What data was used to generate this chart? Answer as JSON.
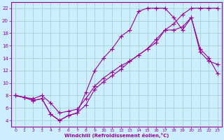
{
  "xlabel": "Windchill (Refroidissement éolien,°C)",
  "background_color": "#cceeff",
  "line_color": "#990099",
  "grid_color": "#99cccc",
  "xlim": [
    -0.5,
    23.5
  ],
  "ylim": [
    3,
    23
  ],
  "xticks": [
    0,
    1,
    2,
    3,
    4,
    5,
    6,
    7,
    8,
    9,
    10,
    11,
    12,
    13,
    14,
    15,
    16,
    17,
    18,
    19,
    20,
    21,
    22,
    23
  ],
  "yticks": [
    4,
    6,
    8,
    10,
    12,
    14,
    16,
    18,
    20,
    22
  ],
  "curve1_x": [
    0,
    1,
    2,
    3,
    4,
    5,
    6,
    7,
    8,
    9,
    10,
    11,
    12,
    13,
    14,
    15,
    16,
    17,
    18,
    19,
    20,
    21,
    22,
    23
  ],
  "curve1_y": [
    8.0,
    7.7,
    7.2,
    7.5,
    5.0,
    4.0,
    4.8,
    5.2,
    8.5,
    12.0,
    14.0,
    15.5,
    17.5,
    18.5,
    21.5,
    22.0,
    22.0,
    22.0,
    20.5,
    18.5,
    20.5,
    15.0,
    13.5,
    13.0
  ],
  "curve2_x": [
    0,
    1,
    2,
    3,
    4,
    5,
    6,
    7,
    8,
    9,
    10,
    11,
    12,
    13,
    14,
    15,
    16,
    17,
    18,
    19,
    20,
    21,
    22,
    23
  ],
  "curve2_y": [
    8.0,
    7.7,
    7.5,
    8.0,
    6.8,
    5.2,
    5.5,
    5.8,
    7.5,
    9.5,
    10.8,
    11.8,
    12.8,
    13.5,
    14.5,
    15.5,
    16.5,
    18.5,
    19.5,
    21.0,
    22.0,
    22.0,
    22.0,
    22.0
  ],
  "curve3_x": [
    0,
    1,
    2,
    3,
    4,
    5,
    6,
    7,
    8,
    9,
    10,
    11,
    12,
    13,
    14,
    15,
    16,
    17,
    18,
    19,
    20,
    21,
    22,
    23
  ],
  "curve3_y": [
    8.0,
    7.7,
    7.2,
    7.5,
    5.0,
    4.0,
    4.8,
    5.2,
    6.5,
    9.0,
    10.2,
    11.2,
    12.2,
    13.5,
    14.5,
    15.5,
    17.0,
    18.5,
    18.5,
    19.0,
    20.5,
    15.5,
    14.0,
    11.5
  ]
}
